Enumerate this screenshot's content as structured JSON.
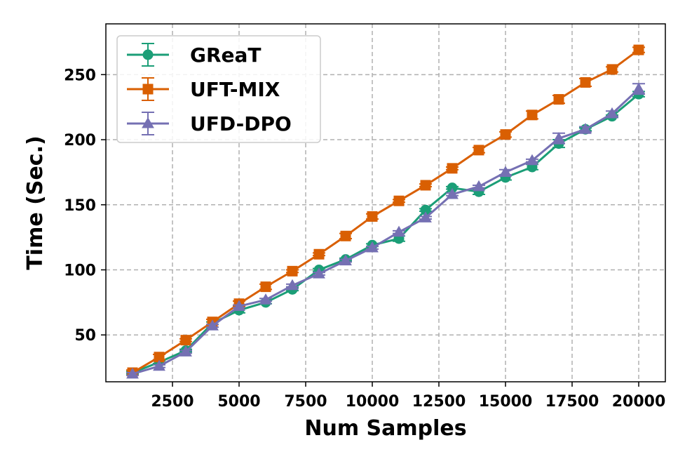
{
  "chart_data": {
    "type": "line",
    "xlabel": "Num Samples",
    "ylabel": "Time (Sec.)",
    "xlim": [
      0,
      21000
    ],
    "ylim": [
      14,
      289
    ],
    "xticks": [
      2500,
      5000,
      7500,
      10000,
      12500,
      15000,
      17500,
      20000
    ],
    "xtick_labels": [
      "2500",
      "5000",
      "7500",
      "10000",
      "12500",
      "15000",
      "17500",
      "20000"
    ],
    "yticks": [
      50,
      100,
      150,
      200,
      250
    ],
    "ytick_labels": [
      "50",
      "100",
      "150",
      "200",
      "250"
    ],
    "grid": true,
    "legend_position": "top-left",
    "x": [
      1000,
      2000,
      3000,
      4000,
      5000,
      6000,
      7000,
      8000,
      9000,
      10000,
      11000,
      12000,
      13000,
      14000,
      15000,
      16000,
      17000,
      18000,
      19000,
      20000
    ],
    "series": [
      {
        "name": "GReaT",
        "color": "#1b9e77",
        "marker": "circle",
        "values": [
          21,
          29,
          38,
          59,
          69,
          75,
          85,
          100,
          108,
          119,
          124,
          146,
          163,
          160,
          171,
          179,
          197,
          208,
          218,
          235
        ],
        "errors": [
          1,
          1,
          1,
          1,
          2,
          1,
          1,
          1,
          1,
          1,
          2,
          1,
          1,
          2,
          2,
          2,
          3,
          1,
          1,
          2
        ]
      },
      {
        "name": "UFT-MIX",
        "color": "#d95f02",
        "marker": "square",
        "values": [
          21,
          33,
          46,
          60,
          74,
          87,
          99,
          112,
          126,
          141,
          153,
          165,
          178,
          192,
          204,
          219,
          231,
          244,
          254,
          269
        ],
        "errors": [
          2,
          2,
          1,
          2,
          2,
          2,
          1,
          1,
          2,
          2,
          1,
          1,
          1,
          2,
          2,
          3,
          3,
          3,
          2,
          2
        ]
      },
      {
        "name": "UFD-DPO",
        "color": "#7570b3",
        "marker": "triangle",
        "values": [
          20,
          26,
          37,
          57,
          72,
          77,
          88,
          97,
          107,
          117,
          129,
          140,
          158,
          164,
          175,
          184,
          201,
          208,
          220,
          239
        ],
        "errors": [
          1,
          1,
          1,
          1,
          1,
          1,
          1,
          1,
          1,
          1,
          1,
          1,
          1,
          1,
          2,
          1,
          4,
          2,
          2,
          4
        ]
      }
    ]
  }
}
